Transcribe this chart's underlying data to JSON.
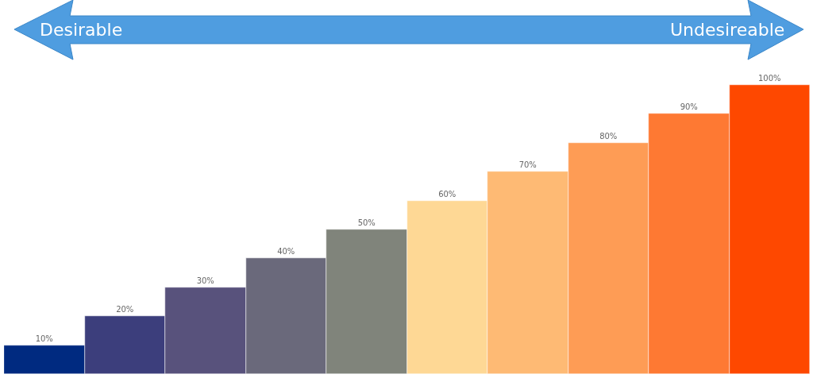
{
  "chart_data": {
    "type": "bar",
    "categories": [
      null,
      null,
      null,
      null,
      null,
      null,
      null,
      null,
      null,
      null
    ],
    "values": [
      10,
      20,
      30,
      40,
      50,
      60,
      70,
      80,
      90,
      100
    ],
    "value_labels": [
      "10%",
      "20%",
      "30%",
      "40%",
      "50%",
      "60%",
      "70%",
      "80%",
      "90%",
      "100%"
    ],
    "colors": [
      "#002a80",
      "#3c3e7c",
      "#58527c",
      "#6a697b",
      "#80847b",
      "#fed895",
      "#feba74",
      "#fe9c55",
      "#fe7933",
      "#fe4800"
    ],
    "annotations": [
      "Desirable",
      "Undesireable"
    ]
  }
}
